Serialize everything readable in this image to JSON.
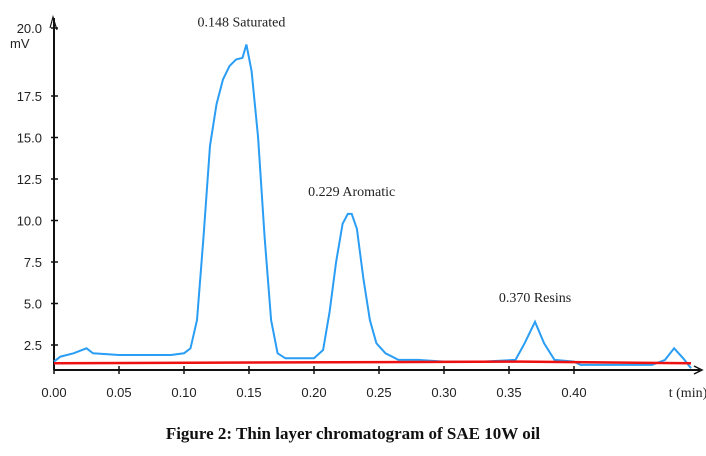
{
  "chart_data": {
    "type": "line",
    "title": "",
    "xlabel": "t (min)",
    "ylabel": "mV",
    "xlim": [
      0,
      0.5
    ],
    "ylim": [
      1.0,
      21.0
    ],
    "x_ticks": [
      "0.00",
      "0.05",
      "0.10",
      "0.15",
      "0.20",
      "0.25",
      "0.30",
      "0.35",
      "0.40"
    ],
    "y_ticks": [
      "2.5",
      "5.0",
      "7.5",
      "10.0",
      "12.5",
      "15.0",
      "17.5",
      "20.0"
    ],
    "grid": false,
    "series": [
      {
        "name": "signal",
        "color": "#2a9df4",
        "x": [
          0.0,
          0.005,
          0.015,
          0.025,
          0.03,
          0.05,
          0.06,
          0.09,
          0.1,
          0.105,
          0.11,
          0.115,
          0.12,
          0.125,
          0.13,
          0.135,
          0.14,
          0.145,
          0.148,
          0.152,
          0.157,
          0.162,
          0.167,
          0.172,
          0.178,
          0.185,
          0.2,
          0.207,
          0.212,
          0.217,
          0.222,
          0.226,
          0.229,
          0.233,
          0.238,
          0.243,
          0.248,
          0.255,
          0.265,
          0.28,
          0.3,
          0.33,
          0.355,
          0.362,
          0.37,
          0.377,
          0.385,
          0.4,
          0.405,
          0.43,
          0.46,
          0.47,
          0.477,
          0.484,
          0.49
        ],
        "y": [
          1.5,
          1.8,
          2.0,
          2.3,
          2.0,
          1.9,
          1.9,
          1.9,
          2.0,
          2.3,
          4.0,
          9.0,
          14.5,
          17.0,
          18.5,
          19.3,
          19.7,
          19.8,
          20.6,
          19.0,
          15.0,
          9.0,
          4.0,
          2.0,
          1.7,
          1.7,
          1.7,
          2.2,
          4.5,
          7.5,
          9.8,
          10.4,
          10.4,
          9.5,
          6.5,
          4.0,
          2.6,
          2.0,
          1.6,
          1.6,
          1.5,
          1.5,
          1.6,
          2.6,
          3.9,
          2.6,
          1.6,
          1.5,
          1.3,
          1.3,
          1.3,
          1.6,
          2.3,
          1.7,
          1.1
        ]
      },
      {
        "name": "baseline",
        "color": "#ee1111",
        "x": [
          0.0,
          0.18,
          0.36,
          0.42,
          0.49
        ],
        "y": [
          1.4,
          1.45,
          1.5,
          1.45,
          1.4
        ]
      }
    ],
    "annotations": [
      {
        "text": "0.148 Saturated",
        "x": 0.148,
        "y": 20.6
      },
      {
        "text": "0.229 Aromatic",
        "x": 0.229,
        "y": 10.4
      },
      {
        "text": "0.370 Resins",
        "x": 0.37,
        "y": 3.9
      }
    ],
    "caption": "Figure 2: Thin layer chromatogram of SAE 10W oil"
  }
}
